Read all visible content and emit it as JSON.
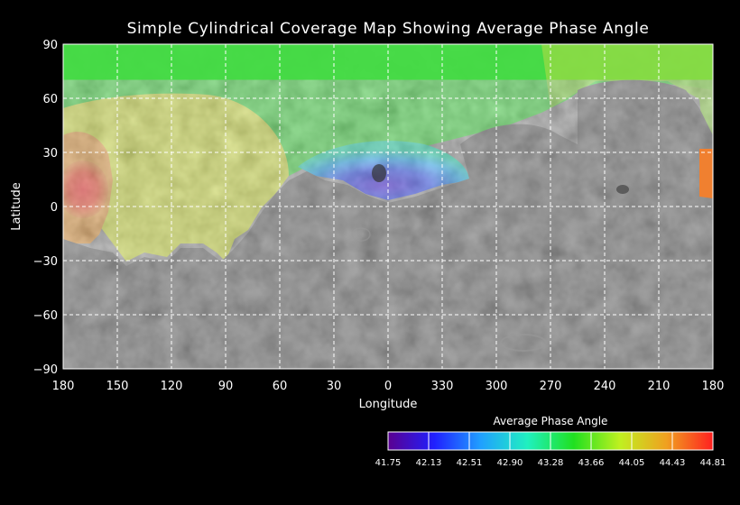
{
  "title": "Simple Cylindrical Coverage Map Showing Average Phase Angle",
  "x_axis": {
    "label": "Longitude",
    "ticks": [
      "180",
      "150",
      "120",
      "90",
      "60",
      "30",
      "0",
      "330",
      "300",
      "270",
      "240",
      "210",
      "180"
    ]
  },
  "y_axis": {
    "label": "Latitude",
    "ticks": [
      "90",
      "60",
      "30",
      "0",
      "−30",
      "−60",
      "−90"
    ]
  },
  "colorbar": {
    "title": "Average Phase Angle",
    "ticks": [
      "41.75",
      "42.13",
      "42.51",
      "42.90",
      "43.28",
      "43.66",
      "44.05",
      "44.43",
      "44.81"
    ],
    "colors": [
      "#5a0090",
      "#2020ff",
      "#20a0ff",
      "#20f0c0",
      "#20e020",
      "#c0f020",
      "#f0a020",
      "#ff2020"
    ]
  },
  "colors": {
    "background": "#000000",
    "grid": "#ffffff",
    "surface": "#6b6b6b"
  }
}
